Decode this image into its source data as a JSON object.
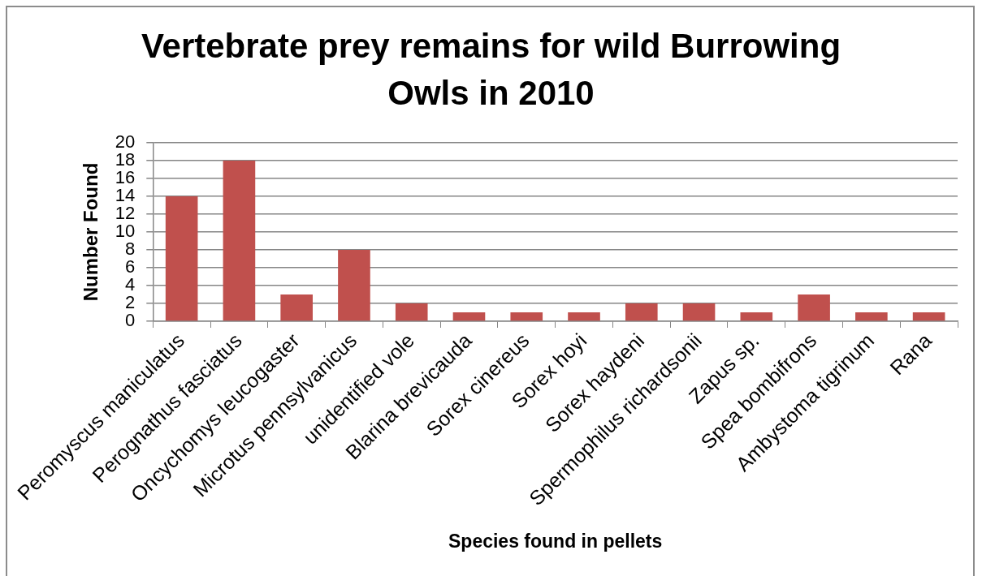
{
  "chart_data": {
    "type": "bar",
    "title": "Vertebrate prey remains for wild Burrowing Owls in 2010",
    "xlabel": "Species found in pellets",
    "ylabel": "Number Found",
    "categories": [
      "Peromyscus maniculatus",
      "Perognathus fasciatus",
      "Oncychomys leucogaster",
      "Microtus pennsylvanicus",
      "unidentified vole",
      "Blarina brevicauda",
      "Sorex cinereus",
      "Sorex hoyi",
      "Sorex haydeni",
      "Spermophilus richardsonii",
      "Zapus sp.",
      "Spea bombifrons",
      "Ambystoma tigrinum",
      "Rana"
    ],
    "values": [
      14,
      18,
      3,
      8,
      2,
      1,
      1,
      1,
      2,
      2,
      1,
      3,
      1,
      1
    ],
    "color": "#c0504d",
    "ylim": [
      0,
      20
    ],
    "yticks": [
      0,
      2,
      4,
      6,
      8,
      10,
      12,
      14,
      16,
      18,
      20
    ],
    "grid": "y",
    "legend": false
  }
}
